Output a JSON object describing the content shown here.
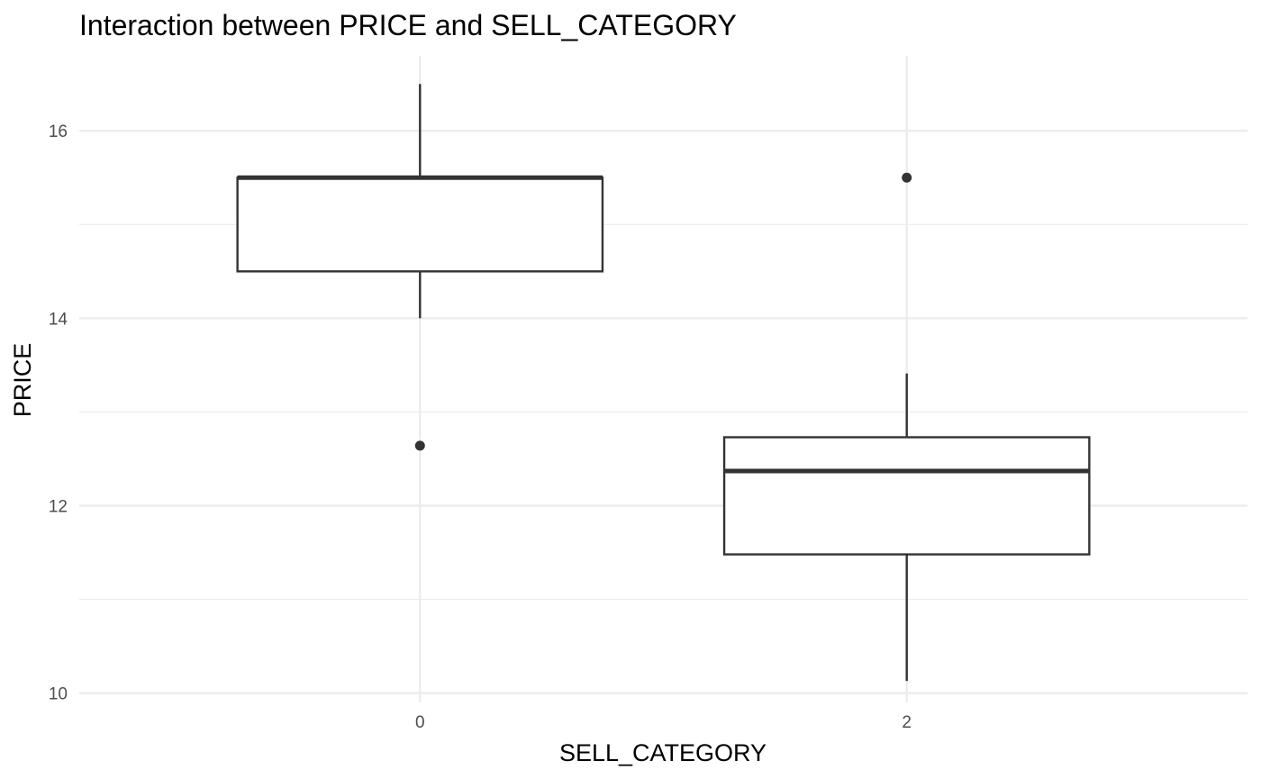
{
  "chart_data": {
    "type": "box",
    "title": "Interaction between PRICE and SELL_CATEGORY",
    "xlabel": "SELL_CATEGORY",
    "ylabel": "PRICE",
    "categories": [
      "0",
      "2"
    ],
    "ylim": [
      9.9,
      16.8
    ],
    "yticks": [
      10,
      12,
      14,
      16
    ],
    "yticks_minor": [
      11,
      13,
      15
    ],
    "grid": true,
    "legend": "none",
    "colors": {
      "box_stroke": "#333333",
      "box_fill": "#ffffff",
      "grid": "#ebebeb",
      "tick_text": "#4d4d4d"
    },
    "boxes": [
      {
        "category": "0",
        "whisker_low": 14.0,
        "q1": 14.5,
        "median": 15.5,
        "q3": 15.5,
        "whisker_high": 16.5,
        "outliers": [
          12.64
        ]
      },
      {
        "category": "2",
        "whisker_low": 10.13,
        "q1": 11.48,
        "median": 12.37,
        "q3": 12.73,
        "whisker_high": 13.41,
        "outliers": [
          15.5
        ]
      }
    ]
  }
}
